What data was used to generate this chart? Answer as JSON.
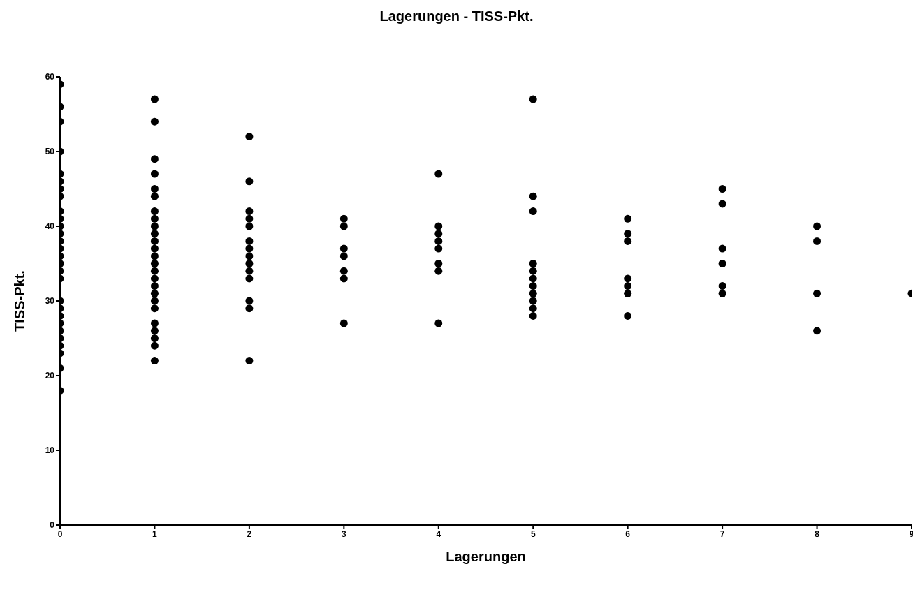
{
  "chart_data": {
    "type": "scatter",
    "title": "Lagerungen - TISS-Pkt.",
    "xlabel": "Lagerungen",
    "ylabel": "TISS-Pkt.",
    "x": [
      0,
      0,
      0,
      0,
      0,
      0,
      0,
      0,
      0,
      0,
      0,
      0,
      0,
      0,
      0,
      0,
      0,
      0,
      0,
      0,
      0,
      0,
      0,
      0,
      0,
      0,
      0,
      0,
      1,
      1,
      1,
      1,
      1,
      1,
      1,
      1,
      1,
      1,
      1,
      1,
      1,
      1,
      1,
      1,
      1,
      1,
      1,
      1,
      1,
      1,
      1,
      1,
      1,
      2,
      2,
      2,
      2,
      2,
      2,
      2,
      2,
      2,
      2,
      2,
      2,
      2,
      2,
      3,
      3,
      3,
      3,
      3,
      3,
      3,
      4,
      4,
      4,
      4,
      4,
      4,
      4,
      4,
      5,
      5,
      5,
      5,
      5,
      5,
      5,
      5,
      5,
      5,
      5,
      6,
      6,
      6,
      6,
      6,
      6,
      6,
      7,
      7,
      7,
      7,
      7,
      7,
      8,
      8,
      8,
      8,
      9
    ],
    "values": [
      59,
      56,
      54,
      50,
      47,
      46,
      45,
      44,
      42,
      41,
      40,
      39,
      38,
      37,
      36,
      35,
      34,
      33,
      30,
      29,
      28,
      27,
      26,
      25,
      24,
      23,
      21,
      18,
      57,
      54,
      49,
      47,
      45,
      44,
      42,
      41,
      40,
      39,
      38,
      37,
      36,
      35,
      34,
      33,
      32,
      31,
      30,
      29,
      27,
      26,
      25,
      24,
      22,
      52,
      46,
      42,
      41,
      40,
      38,
      37,
      36,
      35,
      34,
      33,
      30,
      29,
      22,
      41,
      40,
      37,
      36,
      34,
      33,
      27,
      47,
      40,
      39,
      38,
      37,
      35,
      34,
      27,
      57,
      44,
      42,
      35,
      34,
      33,
      32,
      31,
      30,
      29,
      28,
      41,
      39,
      38,
      33,
      32,
      31,
      28,
      45,
      43,
      37,
      35,
      32,
      31,
      40,
      38,
      31,
      26,
      31
    ],
    "color": "#000000",
    "marker": "circle",
    "grid": false,
    "legend": false,
    "xlim": [
      0,
      9
    ],
    "xticks": [
      0,
      1,
      2,
      3,
      4,
      5,
      6,
      7,
      8,
      9
    ],
    "ylim": [
      0,
      60
    ],
    "yticks": [
      0,
      10,
      20,
      30,
      40,
      50,
      60
    ]
  }
}
